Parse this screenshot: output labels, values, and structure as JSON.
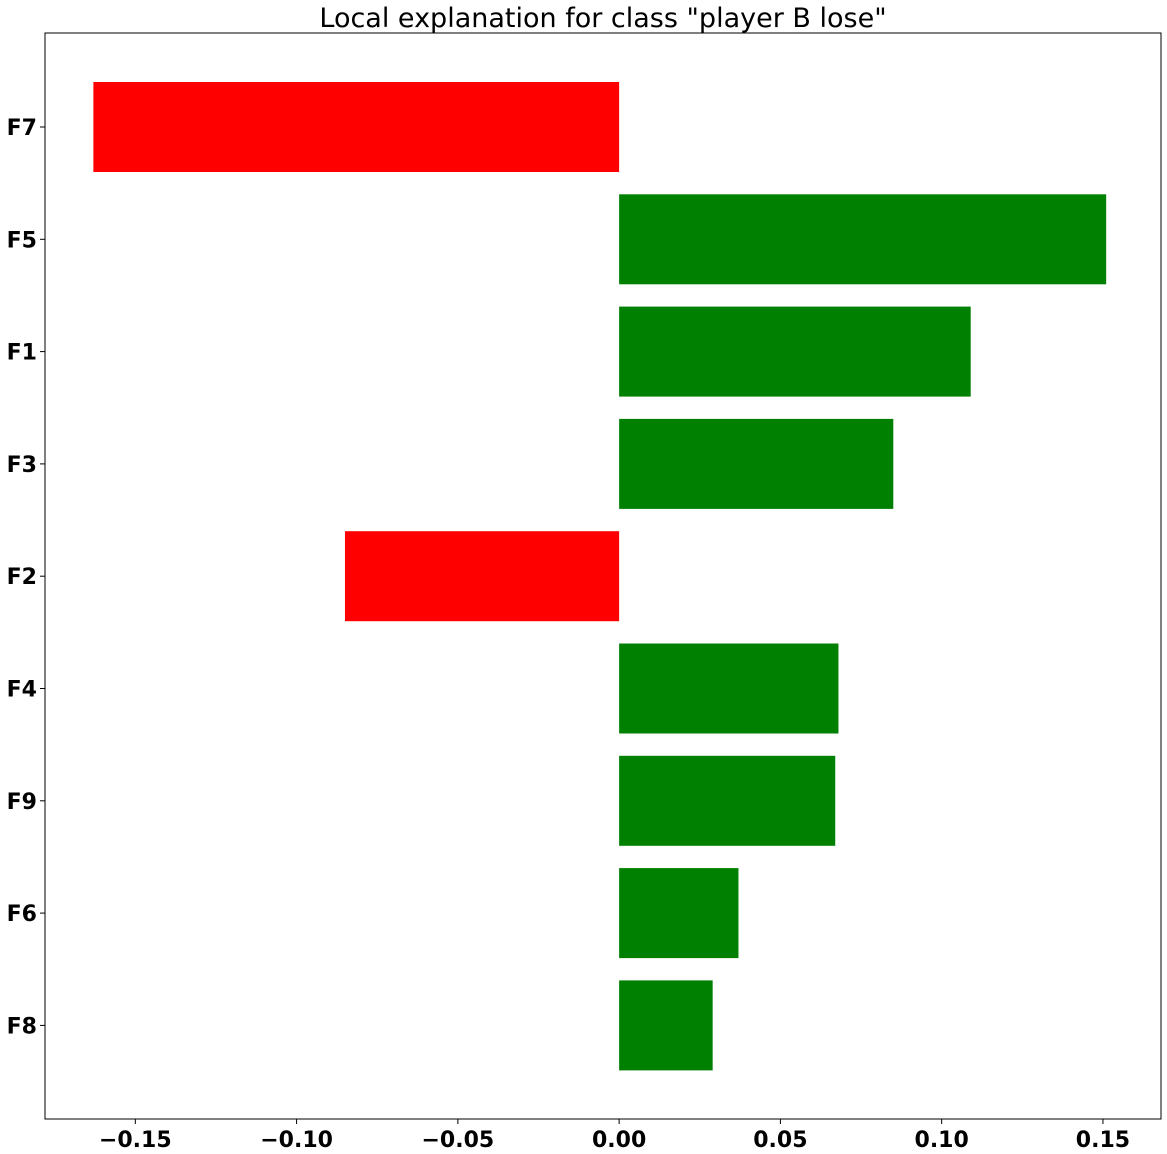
{
  "chart_data": {
    "type": "bar",
    "orientation": "horizontal",
    "title": "Local explanation for class \"player B lose\"",
    "xlabel": "",
    "ylabel": "",
    "categories": [
      "F7",
      "F5",
      "F1",
      "F3",
      "F2",
      "F4",
      "F9",
      "F6",
      "F8"
    ],
    "values": [
      -0.163,
      0.151,
      0.109,
      0.085,
      -0.085,
      0.068,
      0.067,
      0.037,
      0.029
    ],
    "xlim": [
      -0.178,
      0.168
    ],
    "xticks": [
      -0.15,
      -0.1,
      -0.05,
      0.0,
      0.05,
      0.1,
      0.15
    ],
    "xtick_labels": [
      "−0.15",
      "−0.10",
      "−0.05",
      "0.00",
      "0.05",
      "0.10",
      "0.15"
    ],
    "positive_color": "#008000",
    "negative_color": "#ff0000",
    "grid": false,
    "legend": "none"
  }
}
